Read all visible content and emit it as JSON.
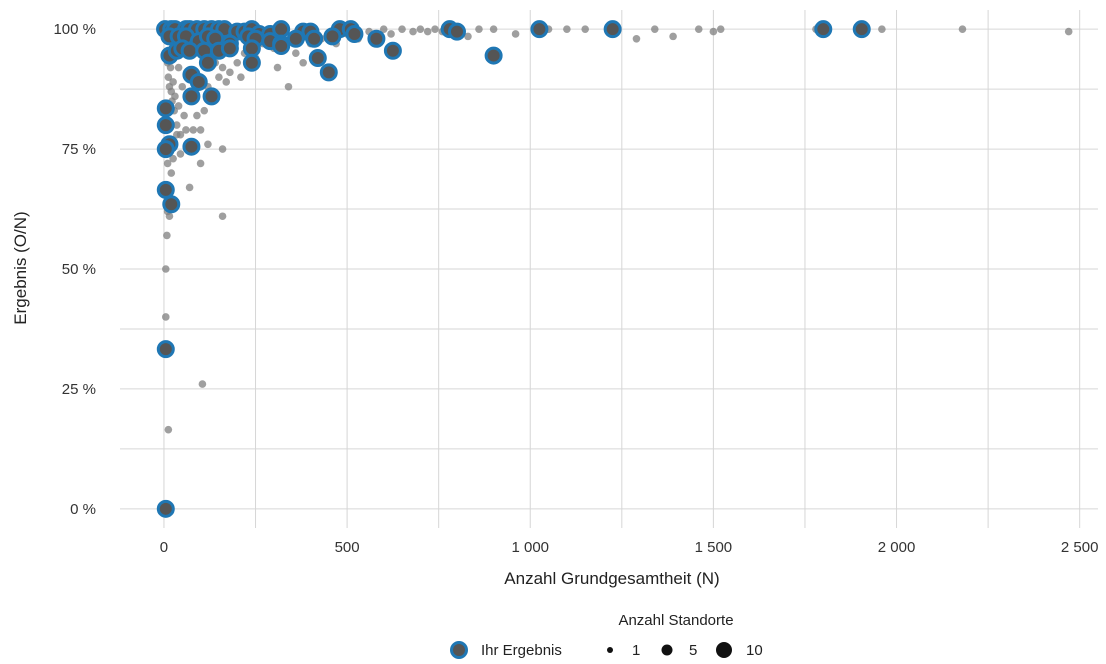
{
  "chart_data": {
    "type": "scatter",
    "xlabel": "Anzahl Grundgesamtheit (N)",
    "ylabel": "Ergebnis (O/N)",
    "xlim": [
      -120,
      2550
    ],
    "ylim": [
      -0.04,
      1.04
    ],
    "x_ticks": [
      0,
      500,
      1000,
      1500,
      2000,
      2500
    ],
    "x_tick_labels": [
      "0",
      "500",
      "1 000",
      "1 500",
      "2 000",
      "2 500"
    ],
    "y_ticks": [
      0,
      0.25,
      0.5,
      0.75,
      1.0
    ],
    "y_tick_labels": [
      "0 %",
      "25 %",
      "50 %",
      "75 %",
      "100 %"
    ],
    "grid": true,
    "colors": {
      "highlight_ring": "#1f77b4",
      "point_fill": "#555555",
      "others": "#7f7f7f"
    },
    "series": [
      {
        "name": "Ihr Ergebnis",
        "points": [
          [
            3,
            1.0
          ],
          [
            20,
            1.0
          ],
          [
            30,
            1.0
          ],
          [
            60,
            1.0
          ],
          [
            70,
            1.0
          ],
          [
            90,
            1.0
          ],
          [
            110,
            1.0
          ],
          [
            130,
            1.0
          ],
          [
            150,
            1.0
          ],
          [
            165,
            1.0
          ],
          [
            200,
            0.995
          ],
          [
            220,
            0.995
          ],
          [
            240,
            1.0
          ],
          [
            260,
            0.99
          ],
          [
            290,
            0.99
          ],
          [
            320,
            1.0
          ],
          [
            380,
            0.995
          ],
          [
            400,
            0.995
          ],
          [
            480,
            1.0
          ],
          [
            510,
            1.0
          ],
          [
            780,
            1.0
          ],
          [
            800,
            0.995
          ],
          [
            1025,
            1.0
          ],
          [
            1225,
            1.0
          ],
          [
            1800,
            1.0
          ],
          [
            1905,
            1.0
          ],
          [
            15,
            0.985
          ],
          [
            40,
            0.985
          ],
          [
            60,
            0.985
          ],
          [
            95,
            0.975
          ],
          [
            120,
            0.985
          ],
          [
            140,
            0.98
          ],
          [
            180,
            0.97
          ],
          [
            230,
            0.985
          ],
          [
            250,
            0.98
          ],
          [
            290,
            0.975
          ],
          [
            320,
            0.97
          ],
          [
            360,
            0.98
          ],
          [
            410,
            0.98
          ],
          [
            460,
            0.985
          ],
          [
            520,
            0.99
          ],
          [
            580,
            0.98
          ],
          [
            625,
            0.955
          ],
          [
            15,
            0.945
          ],
          [
            35,
            0.955
          ],
          [
            50,
            0.96
          ],
          [
            70,
            0.955
          ],
          [
            110,
            0.955
          ],
          [
            150,
            0.955
          ],
          [
            180,
            0.96
          ],
          [
            240,
            0.96
          ],
          [
            320,
            0.965
          ],
          [
            120,
            0.93
          ],
          [
            240,
            0.93
          ],
          [
            420,
            0.94
          ],
          [
            450,
            0.91
          ],
          [
            900,
            0.945
          ],
          [
            75,
            0.905
          ],
          [
            95,
            0.89
          ],
          [
            75,
            0.86
          ],
          [
            130,
            0.86
          ],
          [
            5,
            0.835
          ],
          [
            5,
            0.8
          ],
          [
            15,
            0.76
          ],
          [
            5,
            0.75
          ],
          [
            75,
            0.755
          ],
          [
            5,
            0.665
          ],
          [
            20,
            0.635
          ],
          [
            5,
            0.333
          ],
          [
            5,
            0.0
          ]
        ]
      },
      {
        "name": "",
        "points": [
          [
            5,
            0.98
          ],
          [
            8,
            0.95
          ],
          [
            10,
            0.93
          ],
          [
            12,
            0.9
          ],
          [
            15,
            0.88
          ],
          [
            18,
            0.92
          ],
          [
            20,
            0.87
          ],
          [
            22,
            0.85
          ],
          [
            25,
            0.89
          ],
          [
            28,
            0.83
          ],
          [
            30,
            0.86
          ],
          [
            35,
            0.8
          ],
          [
            40,
            0.84
          ],
          [
            45,
            0.78
          ],
          [
            50,
            0.88
          ],
          [
            55,
            0.82
          ],
          [
            60,
            0.79
          ],
          [
            65,
            0.9
          ],
          [
            80,
            0.79
          ],
          [
            90,
            0.82
          ],
          [
            100,
            0.79
          ],
          [
            110,
            0.83
          ],
          [
            120,
            0.88
          ],
          [
            130,
            0.85
          ],
          [
            150,
            0.9
          ],
          [
            160,
            0.92
          ],
          [
            170,
            0.89
          ],
          [
            180,
            0.91
          ],
          [
            200,
            0.93
          ],
          [
            210,
            0.9
          ],
          [
            220,
            0.95
          ],
          [
            250,
            0.94
          ],
          [
            270,
            0.97
          ],
          [
            300,
            0.96
          ],
          [
            310,
            0.92
          ],
          [
            340,
            0.88
          ],
          [
            360,
            0.95
          ],
          [
            380,
            0.93
          ],
          [
            400,
            0.97
          ],
          [
            430,
            0.98
          ],
          [
            470,
            0.97
          ],
          [
            500,
            0.99
          ],
          [
            530,
            0.98
          ],
          [
            560,
            0.995
          ],
          [
            600,
            1.0
          ],
          [
            620,
            0.99
          ],
          [
            650,
            1.0
          ],
          [
            680,
            0.995
          ],
          [
            700,
            1.0
          ],
          [
            720,
            0.995
          ],
          [
            740,
            1.0
          ],
          [
            760,
            0.995
          ],
          [
            830,
            0.985
          ],
          [
            860,
            1.0
          ],
          [
            900,
            1.0
          ],
          [
            960,
            0.99
          ],
          [
            1050,
            1.0
          ],
          [
            1100,
            1.0
          ],
          [
            1150,
            1.0
          ],
          [
            1290,
            0.98
          ],
          [
            1340,
            1.0
          ],
          [
            1390,
            0.985
          ],
          [
            1460,
            1.0
          ],
          [
            1500,
            0.995
          ],
          [
            1520,
            1.0
          ],
          [
            1780,
            1.0
          ],
          [
            1960,
            1.0
          ],
          [
            2180,
            1.0
          ],
          [
            2470,
            0.995
          ],
          [
            10,
            0.72
          ],
          [
            20,
            0.7
          ],
          [
            25,
            0.73
          ],
          [
            45,
            0.74
          ],
          [
            70,
            0.67
          ],
          [
            100,
            0.72
          ],
          [
            160,
            0.75
          ],
          [
            10,
            0.62
          ],
          [
            15,
            0.61
          ],
          [
            160,
            0.61
          ],
          [
            8,
            0.57
          ],
          [
            5,
            0.5
          ],
          [
            5,
            0.4
          ],
          [
            105,
            0.26
          ],
          [
            12,
            0.165
          ],
          [
            35,
            0.78
          ],
          [
            120,
            0.76
          ],
          [
            40,
            0.92
          ],
          [
            85,
            0.95
          ],
          [
            140,
            0.93
          ]
        ]
      }
    ],
    "legend": {
      "title": "Anzahl Standorte",
      "series_label": "Ihr Ergebnis",
      "size_labels": [
        "1",
        "5",
        "10"
      ],
      "placement": "bottom-center"
    }
  }
}
